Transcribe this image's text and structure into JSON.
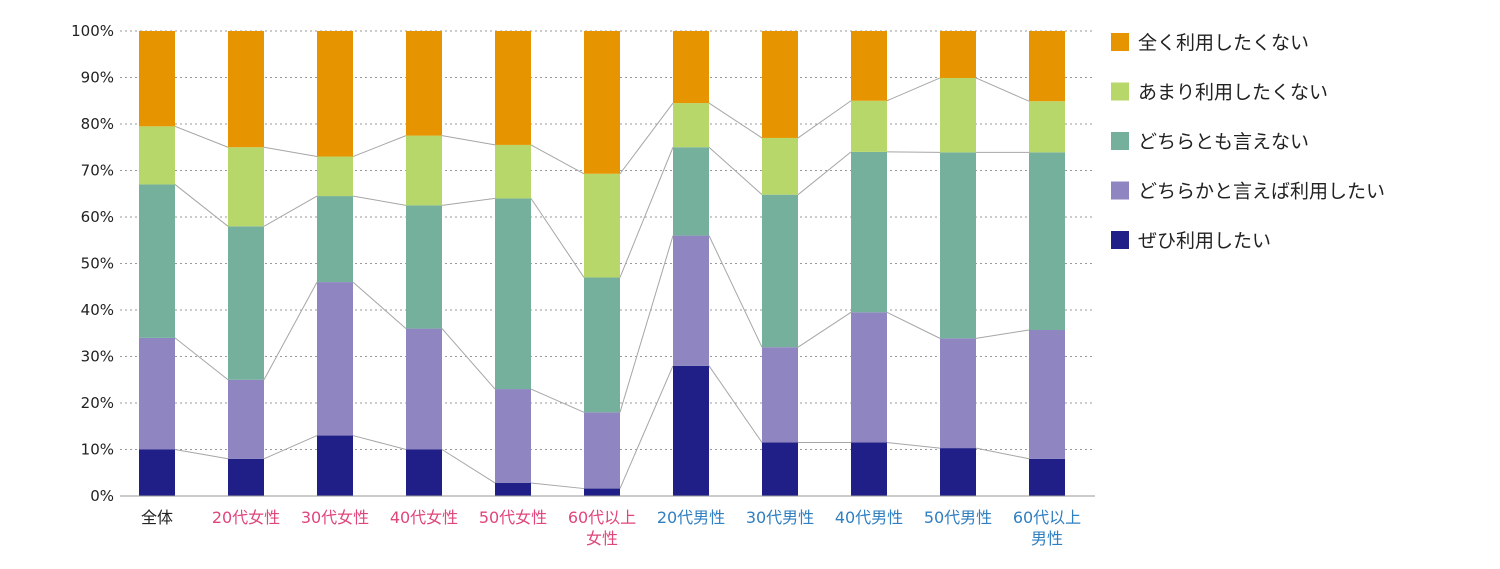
{
  "chart_data": {
    "type": "bar",
    "stacked": true,
    "y_ticks": [
      "0%",
      "10%",
      "20%",
      "30%",
      "40%",
      "50%",
      "60%",
      "70%",
      "80%",
      "90%",
      "100%"
    ],
    "ylim": [
      0,
      100
    ],
    "categories": [
      {
        "lines": [
          "全体"
        ],
        "color": "#222222"
      },
      {
        "lines": [
          "20代女性"
        ],
        "color": "#e0457b"
      },
      {
        "lines": [
          "30代女性"
        ],
        "color": "#e0457b"
      },
      {
        "lines": [
          "40代女性"
        ],
        "color": "#e0457b"
      },
      {
        "lines": [
          "50代女性"
        ],
        "color": "#e0457b"
      },
      {
        "lines": [
          "60代以上",
          "女性"
        ],
        "color": "#e0457b"
      },
      {
        "lines": [
          "20代男性"
        ],
        "color": "#2f7fc1"
      },
      {
        "lines": [
          "30代男性"
        ],
        "color": "#2f7fc1"
      },
      {
        "lines": [
          "40代男性"
        ],
        "color": "#2f7fc1"
      },
      {
        "lines": [
          "50代男性"
        ],
        "color": "#2f7fc1"
      },
      {
        "lines": [
          "60代以上",
          "男性"
        ],
        "color": "#2f7fc1"
      }
    ],
    "series": [
      {
        "name": "ぜひ利用したい",
        "color": "#1f1f87",
        "values": [
          10,
          8,
          13,
          10,
          2.8,
          1.6,
          28,
          11.5,
          11.5,
          10.3,
          8
        ]
      },
      {
        "name": "どちらかと言えば利用したい",
        "color": "#8f86c1",
        "values": [
          24,
          17,
          33,
          26,
          20.2,
          16.4,
          28,
          20.5,
          28,
          23.6,
          27.7
        ]
      },
      {
        "name": "どちらとも言えない",
        "color": "#75b09c",
        "values": [
          33,
          33,
          18.5,
          26.5,
          41,
          29,
          19,
          32.8,
          34.5,
          40,
          38.2
        ]
      },
      {
        "name": "あまり利用したくない",
        "color": "#b8d76a",
        "values": [
          12.5,
          17,
          8.5,
          15,
          11.5,
          22.3,
          9.5,
          12.2,
          11,
          16,
          11
        ]
      },
      {
        "name": "全く利用したくない",
        "color": "#e69500",
        "values": [
          20.5,
          25,
          27,
          22.5,
          24.5,
          30.7,
          15.5,
          23,
          15,
          10.1,
          15.1
        ]
      }
    ],
    "legend_order": [
      "全く利用したくない",
      "あまり利用したくない",
      "どちらとも言えない",
      "どちらかと言えば利用したい",
      "ぜひ利用したい"
    ],
    "grid": true,
    "series_lines": true,
    "legend_position": "right"
  }
}
